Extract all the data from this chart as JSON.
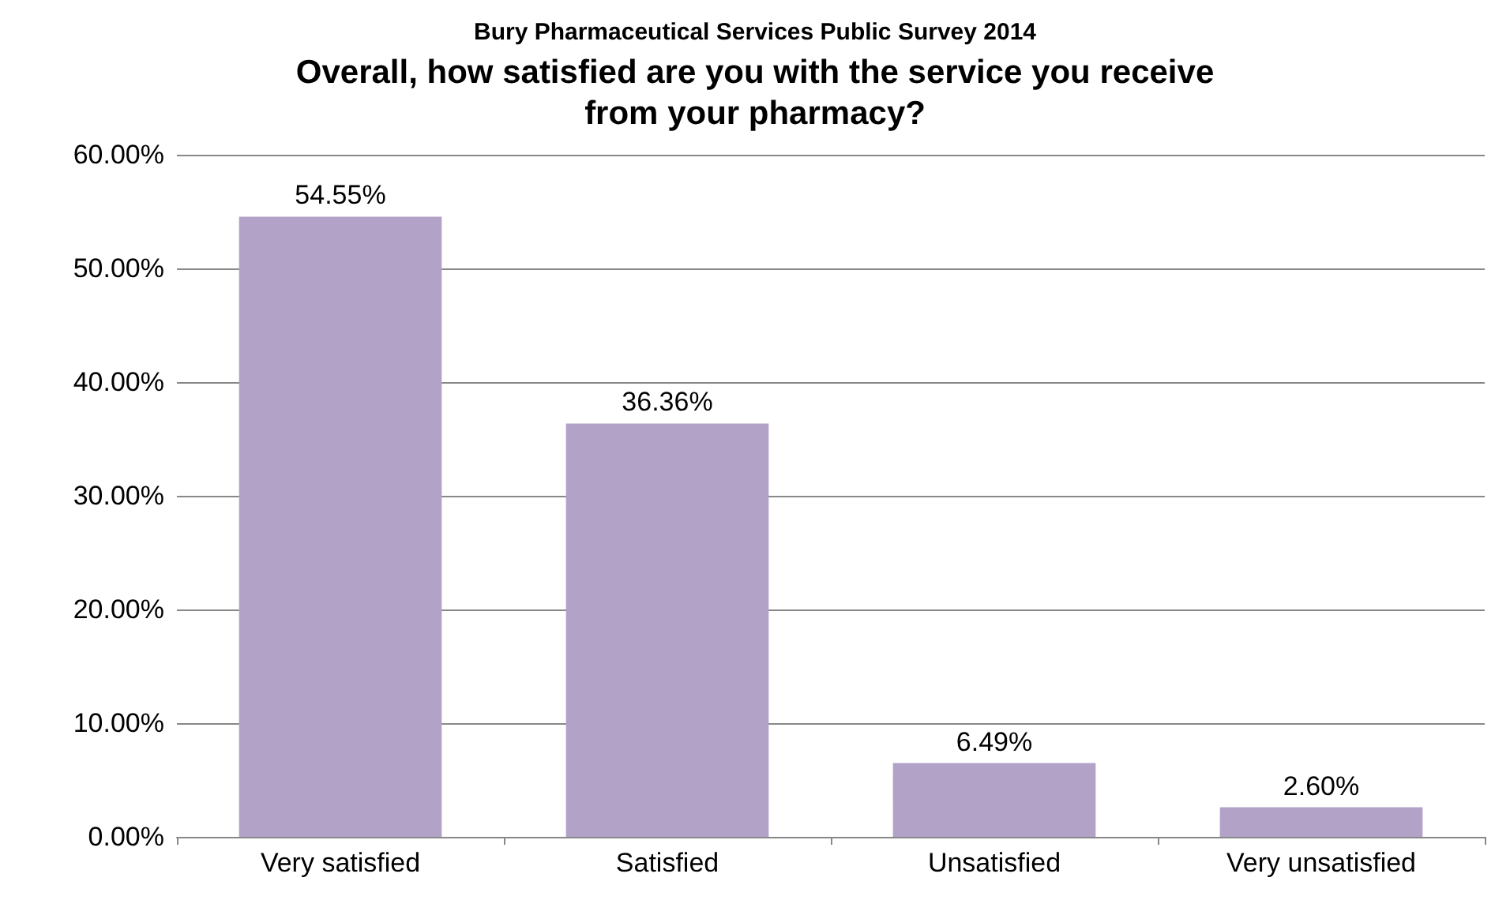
{
  "chart_data": {
    "type": "bar",
    "subtitle": "Bury Pharmaceutical Services Public Survey 2014",
    "title": "Overall, how satisfied are you with the service you receive\nfrom your pharmacy?",
    "categories": [
      "Very satisfied",
      "Satisfied",
      "Unsatisfied",
      "Very unsatisfied"
    ],
    "values": [
      54.55,
      36.36,
      6.49,
      2.6
    ],
    "value_labels": [
      "54.55%",
      "36.36%",
      "6.49%",
      "2.60%"
    ],
    "color": "#b3a2c7",
    "ylim": [
      0,
      60
    ],
    "yticks": [
      {
        "value": 0,
        "label": "0.00%"
      },
      {
        "value": 10,
        "label": "10.00%"
      },
      {
        "value": 20,
        "label": "20.00%"
      },
      {
        "value": 30,
        "label": "30.00%"
      },
      {
        "value": 40,
        "label": "40.00%"
      },
      {
        "value": 50,
        "label": "50.00%"
      },
      {
        "value": 60,
        "label": "60.00%"
      }
    ],
    "grid": "y"
  }
}
